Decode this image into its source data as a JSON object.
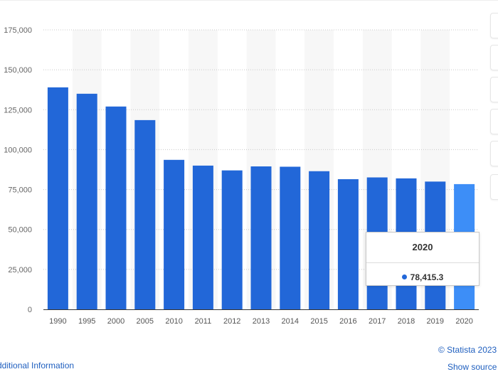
{
  "chart_data": {
    "type": "bar",
    "categories": [
      "1990",
      "1995",
      "2000",
      "2005",
      "2010",
      "2011",
      "2012",
      "2013",
      "2014",
      "2015",
      "2016",
      "2017",
      "2018",
      "2019",
      "2020"
    ],
    "values": [
      139000,
      135000,
      127000,
      118500,
      93600,
      90000,
      87000,
      89500,
      89300,
      86500,
      81500,
      82600,
      82000,
      80000,
      78415.3
    ],
    "ylim": [
      0,
      175000
    ],
    "yticks": [
      0,
      25000,
      50000,
      75000,
      100000,
      125000,
      150000,
      175000
    ],
    "ytick_labels": [
      "0",
      "25,000",
      "50,000",
      "75,000",
      "100,000",
      "125,000",
      "150,000",
      "175,000"
    ],
    "highlighted_index": 14,
    "grid": "horizontal dotted",
    "colors": {
      "bar": "#2267d8",
      "bar_highlight": "#3d8ef7",
      "band": "#f7f7f7",
      "grid": "#c8c8c8"
    }
  },
  "tooltip": {
    "title": "2020",
    "value": "78,415.3",
    "color": "#2267d8"
  },
  "footer": {
    "credit": "© Statista 2023",
    "additional_info": "dditional Information",
    "show_source": "Show source"
  },
  "icons": {
    "tooltip_dot": "series-marker-dot"
  }
}
